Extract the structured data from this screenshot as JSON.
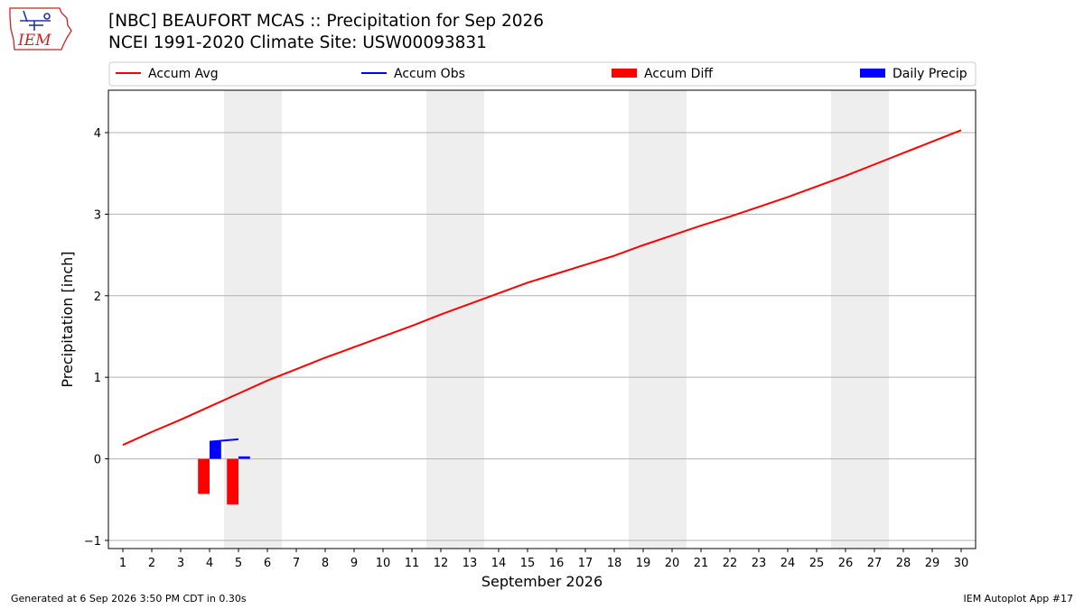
{
  "header": {
    "title": "[NBC] BEAUFORT MCAS :: Precipitation for Sep 2026",
    "subtitle": "NCEI 1991-2020 Climate Site: USW00093831"
  },
  "logo": {
    "text": "IEM",
    "icon": "iem-iowa-logo"
  },
  "footer": {
    "generated": "Generated at 6 Sep 2026 3:50 PM CDT in 0.30s",
    "app": "IEM Autoplot App #17"
  },
  "colors": {
    "accum_avg": "#ff0000",
    "accum_obs": "#0000ff",
    "accum_diff": "#ff0000",
    "daily_precip": "#0000ff",
    "weekend_band": "#eeeeee"
  },
  "chart_data": {
    "type": "line",
    "xlabel": "September 2026",
    "ylabel": "Precipitation [inch]",
    "xlim": [
      0.5,
      30.5
    ],
    "ylim": [
      -1.1,
      4.52
    ],
    "x_ticks": [
      1,
      2,
      3,
      4,
      5,
      6,
      7,
      8,
      9,
      10,
      11,
      12,
      13,
      14,
      15,
      16,
      17,
      18,
      19,
      20,
      21,
      22,
      23,
      24,
      25,
      26,
      27,
      28,
      29,
      30
    ],
    "y_ticks": [
      -1,
      0,
      1,
      2,
      3,
      4
    ],
    "grid": "horizontal",
    "legend_position": "top",
    "legend": [
      {
        "label": "Accum Avg",
        "kind": "line",
        "color": "#ff0000"
      },
      {
        "label": "Accum Obs",
        "kind": "line",
        "color": "#0000ff"
      },
      {
        "label": "Accum Diff",
        "kind": "bar",
        "color": "#ff0000"
      },
      {
        "label": "Daily Precip",
        "kind": "bar",
        "color": "#0000ff"
      }
    ],
    "weekend_spans": [
      [
        4.5,
        6.5
      ],
      [
        11.5,
        13.5
      ],
      [
        18.5,
        20.5
      ],
      [
        25.5,
        27.5
      ]
    ],
    "accum_avg": {
      "x": [
        1,
        2,
        3,
        4,
        5,
        6,
        7,
        8,
        9,
        10,
        11,
        12,
        13,
        14,
        15,
        16,
        17,
        18,
        19,
        20,
        21,
        22,
        23,
        24,
        25,
        26,
        27,
        28,
        29,
        30
      ],
      "values": [
        0.17,
        0.33,
        0.48,
        0.64,
        0.8,
        0.96,
        1.1,
        1.24,
        1.37,
        1.5,
        1.63,
        1.77,
        1.9,
        2.03,
        2.16,
        2.27,
        2.38,
        2.49,
        2.62,
        2.74,
        2.86,
        2.97,
        3.09,
        3.21,
        3.34,
        3.47,
        3.61,
        3.75,
        3.89,
        4.03
      ]
    },
    "accum_obs": {
      "x": [
        4,
        5
      ],
      "values": [
        0.21,
        0.24
      ]
    },
    "accum_diff": {
      "x": [
        3.8,
        4.8
      ],
      "values": [
        -0.43,
        -0.56
      ]
    },
    "daily_precip": {
      "x": [
        4.2,
        5.2
      ],
      "values": [
        0.21,
        0.03
      ]
    }
  }
}
